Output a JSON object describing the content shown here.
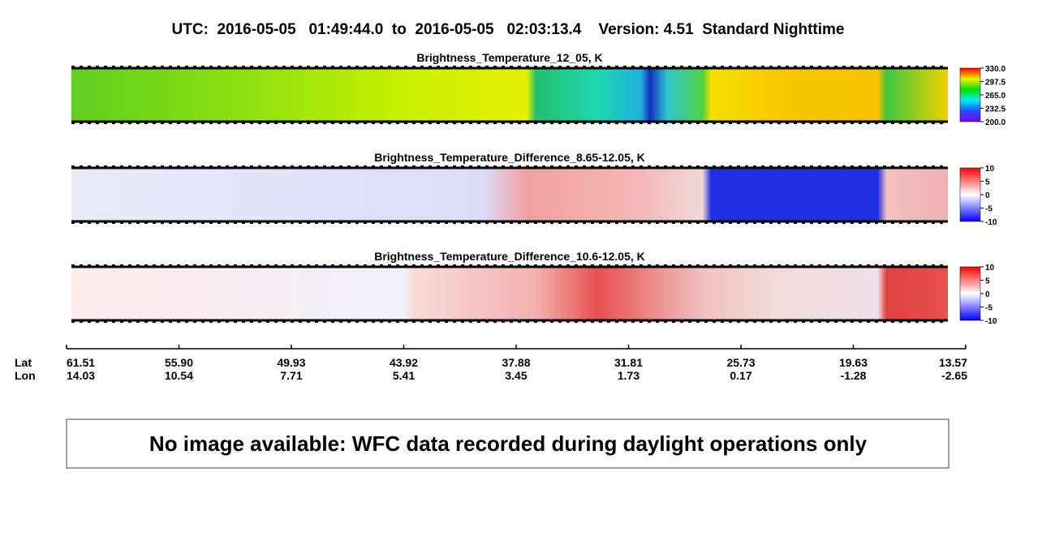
{
  "title": "UTC:  2016-05-05   01:49:44.0  to  2016-05-05   02:03:13.4    Version: 4.51  Standard Nighttime",
  "panels": [
    {
      "title": "Brightness_Temperature_12_05, K",
      "colorbar": {
        "lim": [
          200,
          330
        ],
        "ticks": [
          {
            "value": 330,
            "label": "330.0"
          },
          {
            "value": 297.5,
            "label": "297.5"
          },
          {
            "value": 265,
            "label": "265.0"
          },
          {
            "value": 232.5,
            "label": "232.5"
          },
          {
            "value": 200,
            "label": "200.0"
          }
        ]
      }
    },
    {
      "title": "Brightness_Temperature_Difference_8.65-12.05, K",
      "colorbar": {
        "lim": [
          -10,
          10
        ],
        "ticks": [
          10,
          5,
          0,
          -5,
          -10
        ]
      }
    },
    {
      "title": "Brightness_Temperature_Difference_10.6-12.05, K",
      "colorbar": {
        "lim": [
          -10,
          10
        ],
        "ticks": [
          10,
          5,
          0,
          -5,
          -10
        ]
      }
    }
  ],
  "x_axis": {
    "row_labels": [
      "Lat",
      "Lon"
    ],
    "lat": [
      "61.51",
      "55.90",
      "49.93",
      "43.92",
      "37.88",
      "31.81",
      "25.73",
      "19.63",
      "13.57"
    ],
    "lon": [
      "14.03",
      "10.54",
      "7.71",
      "5.41",
      "3.45",
      "1.73",
      "0.17",
      "-1.28",
      "-2.65"
    ]
  },
  "note": "No image available: WFC data recorded during daylight operations only"
}
